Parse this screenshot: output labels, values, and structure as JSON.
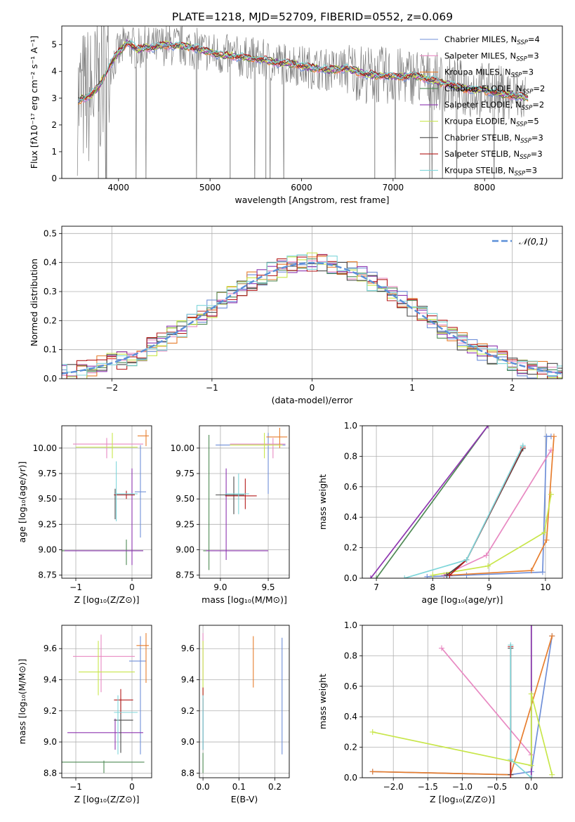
{
  "figure_title": "PLATE=1218, MJD=52709, FIBERID=0552, z=0.069",
  "colors": {
    "chabrier_miles": "#6f8fd8",
    "salpeter_miles": "#e889c2",
    "kroupa_miles": "#e77e2e",
    "chabrier_elodie": "#4f8a55",
    "salpeter_elodie": "#8e36b0",
    "kroupa_elodie": "#c8e64a",
    "chabrier_stelib": "#4a4a4a",
    "salpeter_stelib": "#b51b1b",
    "kroupa_stelib": "#7fd6da",
    "data": "#7f7f7f",
    "normal": "#5b8fd8"
  },
  "chart_data": [
    {
      "id": "spectrum",
      "type": "line",
      "xlabel": "wavelength [Angstrom, rest frame]",
      "ylabel": "Flux [fλ10⁻¹⁷ erg cm⁻² s⁻¹ A⁻¹]",
      "xlim": [
        3380,
        8850
      ],
      "ylim": [
        0,
        5.7
      ],
      "xticks": [
        4000,
        5000,
        6000,
        7000,
        8000
      ],
      "yticks": [
        0,
        1,
        2,
        3,
        4,
        5
      ],
      "grid": false,
      "legend": "top-right",
      "legend_entries": [
        {
          "key": "chabrier_miles",
          "base": "Chabrier MILES, N",
          "sub": "SSP",
          "suffix": "=4"
        },
        {
          "key": "salpeter_miles",
          "base": "Salpeter MILES, N",
          "sub": "SSP",
          "suffix": "=3"
        },
        {
          "key": "kroupa_miles",
          "base": "Kroupa MILES, N",
          "sub": "SSP",
          "suffix": "=3"
        },
        {
          "key": "chabrier_elodie",
          "base": "Chabrier ELODIE, N",
          "sub": "SSP",
          "suffix": "=2"
        },
        {
          "key": "salpeter_elodie",
          "base": "Salpeter ELODIE, N",
          "sub": "SSP",
          "suffix": "=2"
        },
        {
          "key": "kroupa_elodie",
          "base": "Kroupa ELODIE, N",
          "sub": "SSP",
          "suffix": "=5"
        },
        {
          "key": "chabrier_stelib",
          "base": "Chabrier STELIB, N",
          "sub": "SSP",
          "suffix": "=3"
        },
        {
          "key": "salpeter_stelib",
          "base": "Salpeter STELIB, N",
          "sub": "SSP",
          "suffix": "=3"
        },
        {
          "key": "kroupa_stelib",
          "base": "Kroupa STELIB, N",
          "sub": "SSP",
          "suffix": "=3"
        }
      ],
      "model_x": [
        3500,
        3600,
        3700,
        3800,
        3900,
        4000,
        4100,
        4200,
        4300,
        4400,
        4500,
        4600,
        4700,
        4800,
        4900,
        5000,
        5100,
        5200,
        5300,
        5400,
        5500,
        5600,
        5700,
        5800,
        5900,
        6000,
        6100,
        6200,
        6300,
        6400,
        6500,
        6600,
        6700,
        6800,
        6900,
        7000,
        7100,
        7200,
        7300,
        7400,
        7500,
        7600,
        7700,
        7800,
        7900,
        8000,
        8100,
        8200,
        8300,
        8400,
        8500
      ],
      "model_y": [
        2.7,
        3.0,
        3.1,
        3.5,
        4.2,
        4.7,
        5.1,
        4.8,
        4.9,
        4.9,
        5.0,
        4.95,
        4.95,
        4.9,
        4.8,
        4.75,
        4.6,
        4.6,
        4.55,
        4.5,
        4.5,
        4.4,
        4.35,
        4.3,
        4.3,
        4.2,
        4.15,
        4.1,
        4.05,
        4.1,
        4.1,
        4.0,
        3.9,
        3.85,
        3.85,
        3.8,
        3.8,
        3.85,
        3.8,
        3.7,
        3.6,
        3.55,
        3.4,
        3.35,
        3.3,
        3.3,
        3.2,
        3.15,
        3.1,
        3.05,
        3.0
      ]
    },
    {
      "id": "residuals",
      "type": "bar",
      "xlabel": "(data-model)/error",
      "ylabel": "Normed distribution",
      "xlim": [
        -2.5,
        2.5
      ],
      "ylim": [
        0,
        0.525
      ],
      "xticks": [
        -2,
        -1,
        0,
        1,
        2
      ],
      "yticks": [
        0.0,
        0.1,
        0.2,
        0.3,
        0.4,
        0.5
      ],
      "grid": true,
      "legend": "top-right",
      "normal_label": "𝒩(0,1)",
      "bin_width": 0.1
    },
    {
      "id": "age_vs_Z",
      "type": "scatter",
      "xlabel": "Z [log₁₀(Z/Z⊙)]",
      "ylabel": "age  [log₁₀(age/yr)]",
      "xlim": [
        -1.25,
        0.35
      ],
      "ylim": [
        8.72,
        10.22
      ],
      "xticks": [
        -1,
        0
      ],
      "yticks": [
        8.75,
        9.0,
        9.25,
        9.5,
        9.75,
        10.0
      ],
      "grid": true,
      "points": [
        {
          "c": "chabrier_miles",
          "x": 0.15,
          "y": 9.57,
          "xe": [
            0.05,
            0.25
          ],
          "ye": [
            9.12,
            10.03
          ]
        },
        {
          "c": "salpeter_miles",
          "x": -0.45,
          "y": 10.04,
          "xe": [
            -1.05,
            0.2
          ],
          "ye": [
            9.9,
            10.1
          ]
        },
        {
          "c": "kroupa_miles",
          "x": 0.25,
          "y": 10.12,
          "xe": [
            0.1,
            0.3
          ],
          "ye": [
            10.02,
            10.18
          ]
        },
        {
          "c": "chabrier_elodie",
          "x": -0.1,
          "y": 8.99,
          "xe": [
            -1.25,
            0.2
          ],
          "ye": [
            8.85,
            9.1
          ]
        },
        {
          "c": "salpeter_elodie",
          "x": 0.0,
          "y": 8.99,
          "xe": [
            -1.2,
            0.2
          ],
          "ye": [
            8.85,
            9.8
          ]
        },
        {
          "c": "kroupa_elodie",
          "x": -0.35,
          "y": 10.01,
          "xe": [
            -1.0,
            0.1
          ],
          "ye": [
            9.9,
            10.15
          ]
        },
        {
          "c": "chabrier_stelib",
          "x": -0.3,
          "y": 9.54,
          "xe": [
            -0.32,
            0.05
          ],
          "ye": [
            9.3,
            9.6
          ]
        },
        {
          "c": "salpeter_stelib",
          "x": -0.1,
          "y": 9.54,
          "xe": [
            -0.32,
            0.05
          ],
          "ye": [
            9.5,
            9.58
          ]
        },
        {
          "c": "kroupa_stelib",
          "x": -0.28,
          "y": 9.55,
          "xe": [
            -0.3,
            0.1
          ],
          "ye": [
            9.28,
            9.87
          ]
        }
      ]
    },
    {
      "id": "age_vs_mass",
      "type": "scatter",
      "xlabel": "mass [log₁₀(M/M⊙)]",
      "ylabel": "",
      "xlim": [
        8.78,
        9.72
      ],
      "ylim": [
        8.72,
        10.22
      ],
      "xticks": [
        9.0,
        9.5
      ],
      "yticks": [
        8.75,
        9.0,
        9.25,
        9.5,
        9.75,
        10.0
      ],
      "grid": true,
      "points": [
        {
          "c": "chabrier_miles",
          "x": 9.5,
          "y": 10.03,
          "xe": [
            8.95,
            9.68
          ],
          "ye": [
            9.55,
            10.15
          ]
        },
        {
          "c": "salpeter_miles",
          "x": 9.55,
          "y": 10.04,
          "xe": [
            9.1,
            9.68
          ],
          "ye": [
            9.9,
            10.1
          ]
        },
        {
          "c": "kroupa_miles",
          "x": 9.62,
          "y": 10.11,
          "xe": [
            9.48,
            9.7
          ],
          "ye": [
            10.0,
            10.2
          ]
        },
        {
          "c": "chabrier_elodie",
          "x": 8.88,
          "y": 8.99,
          "xe": [
            8.82,
            8.88
          ],
          "ye": [
            8.8,
            10.13
          ]
        },
        {
          "c": "salpeter_elodie",
          "x": 9.06,
          "y": 8.99,
          "xe": [
            8.85,
            9.5
          ],
          "ye": [
            8.9,
            9.8
          ]
        },
        {
          "c": "kroupa_elodie",
          "x": 9.46,
          "y": 10.03,
          "xe": [
            9.1,
            9.65
          ],
          "ye": [
            9.9,
            10.15
          ]
        },
        {
          "c": "chabrier_stelib",
          "x": 9.14,
          "y": 9.54,
          "xe": [
            8.95,
            9.25
          ],
          "ye": [
            9.35,
            9.72
          ]
        },
        {
          "c": "salpeter_stelib",
          "x": 9.26,
          "y": 9.53,
          "xe": [
            9.05,
            9.38
          ],
          "ye": [
            9.4,
            9.7
          ]
        },
        {
          "c": "kroupa_stelib",
          "x": 9.19,
          "y": 9.55,
          "xe": [
            9.05,
            9.3
          ],
          "ye": [
            9.35,
            9.75
          ]
        }
      ]
    },
    {
      "id": "mass_weight_vs_age",
      "type": "line",
      "xlabel": "age  [log₁₀(age/yr)]",
      "ylabel": "mass weight",
      "xlim": [
        6.75,
        10.3
      ],
      "ylim": [
        0,
        1.0
      ],
      "xticks": [
        7,
        8,
        9,
        10
      ],
      "yticks": [
        0.0,
        0.2,
        0.4,
        0.6,
        0.8,
        1.0
      ],
      "grid": true,
      "series": [
        {
          "c": "chabrier_miles",
          "x": [
            7.9,
            8.6,
            9.95,
            10.02,
            10.1
          ],
          "y": [
            0.01,
            0.02,
            0.04,
            0.93,
            0.93
          ]
        },
        {
          "c": "salpeter_miles",
          "x": [
            8.2,
            8.95,
            10.1
          ],
          "y": [
            0.02,
            0.15,
            0.84
          ]
        },
        {
          "c": "kroupa_miles",
          "x": [
            8.3,
            9.75,
            10.02,
            10.15
          ],
          "y": [
            0.02,
            0.05,
            0.25,
            0.93
          ]
        },
        {
          "c": "chabrier_elodie",
          "x": [
            7.0,
            8.98
          ],
          "y": [
            0.0,
            1.0
          ]
        },
        {
          "c": "salpeter_elodie",
          "x": [
            6.9,
            8.98
          ],
          "y": [
            0.0,
            1.0
          ]
        },
        {
          "c": "kroupa_elodie",
          "x": [
            8.0,
            8.98,
            9.98,
            10.1
          ],
          "y": [
            0.02,
            0.08,
            0.3,
            0.55
          ]
        },
        {
          "c": "chabrier_stelib",
          "x": [
            8.25,
            8.6,
            9.6
          ],
          "y": [
            0.02,
            0.12,
            0.85
          ]
        },
        {
          "c": "salpeter_stelib",
          "x": [
            8.3,
            8.6,
            9.6
          ],
          "y": [
            0.02,
            0.12,
            0.86
          ]
        },
        {
          "c": "kroupa_stelib",
          "x": [
            7.5,
            8.6,
            9.6
          ],
          "y": [
            0.0,
            0.12,
            0.87
          ]
        }
      ]
    },
    {
      "id": "mass_vs_Z",
      "type": "scatter",
      "xlabel": "Z [log₁₀(Z/Z⊙)]",
      "ylabel": "mass [log₁₀(M/M⊙)]",
      "xlim": [
        -1.25,
        0.35
      ],
      "ylim": [
        8.77,
        9.75
      ],
      "xticks": [
        -1,
        0
      ],
      "yticks": [
        8.8,
        9.0,
        9.2,
        9.4,
        9.6
      ],
      "grid": true,
      "points": [
        {
          "c": "chabrier_miles",
          "x": 0.15,
          "y": 9.52,
          "xe": [
            -0.05,
            0.25
          ],
          "ye": [
            8.92,
            9.68
          ]
        },
        {
          "c": "salpeter_miles",
          "x": -0.55,
          "y": 9.55,
          "xe": [
            -1.05,
            0.05
          ],
          "ye": [
            9.32,
            9.69
          ]
        },
        {
          "c": "kroupa_miles",
          "x": 0.25,
          "y": 9.62,
          "xe": [
            0.08,
            0.3
          ],
          "ye": [
            9.38,
            9.7
          ]
        },
        {
          "c": "chabrier_elodie",
          "x": -0.5,
          "y": 8.87,
          "xe": [
            -1.25,
            0.22
          ],
          "ye": [
            8.8,
            8.88
          ]
        },
        {
          "c": "salpeter_elodie",
          "x": -0.3,
          "y": 9.06,
          "xe": [
            -1.15,
            0.2
          ],
          "ye": [
            8.95,
            9.15
          ]
        },
        {
          "c": "kroupa_elodie",
          "x": -0.6,
          "y": 9.45,
          "xe": [
            -0.95,
            0.05
          ],
          "ye": [
            9.3,
            9.65
          ]
        },
        {
          "c": "chabrier_stelib",
          "x": -0.2,
          "y": 9.14,
          "xe": [
            -0.32,
            0.02
          ],
          "ye": [
            8.93,
            9.28
          ]
        },
        {
          "c": "salpeter_stelib",
          "x": -0.2,
          "y": 9.27,
          "xe": [
            -0.32,
            0.02
          ],
          "ye": [
            9.18,
            9.34
          ]
        },
        {
          "c": "kroupa_stelib",
          "x": -0.25,
          "y": 9.19,
          "xe": [
            -0.32,
            0.1
          ],
          "ye": [
            8.92,
            9.3
          ]
        }
      ]
    },
    {
      "id": "mass_vs_EBV",
      "type": "scatter",
      "xlabel": "E(B-V)",
      "ylabel": "",
      "xlim": [
        -0.01,
        0.24
      ],
      "ylim": [
        8.77,
        9.75
      ],
      "xticks": [
        0.0,
        0.1,
        0.2
      ],
      "yticks": [
        8.8,
        9.0,
        9.2,
        9.4,
        9.6
      ],
      "grid": true,
      "points": [
        {
          "c": "chabrier_miles",
          "x": 0.22,
          "y": 9.25,
          "xe": [
            0.22,
            0.22
          ],
          "ye": [
            8.92,
            9.67
          ]
        },
        {
          "c": "salpeter_miles",
          "x": 0.0,
          "y": 9.55,
          "xe": [
            0.0,
            0.0
          ],
          "ye": [
            9.4,
            9.7
          ]
        },
        {
          "c": "kroupa_miles",
          "x": 0.14,
          "y": 9.5,
          "xe": [
            0.14,
            0.14
          ],
          "ye": [
            9.35,
            9.68
          ]
        },
        {
          "c": "chabrier_elodie",
          "x": 0.0,
          "y": 8.87,
          "xe": [
            0.0,
            0.0
          ],
          "ye": [
            8.8,
            8.93
          ]
        },
        {
          "c": "salpeter_elodie",
          "x": 0.0,
          "y": 9.06,
          "xe": [
            0.0,
            0.0
          ],
          "ye": [
            8.95,
            9.2
          ]
        },
        {
          "c": "kroupa_elodie",
          "x": 0.0,
          "y": 9.45,
          "xe": [
            0.0,
            0.0
          ],
          "ye": [
            9.3,
            9.65
          ]
        },
        {
          "c": "chabrier_stelib",
          "x": 0.0,
          "y": 9.14,
          "xe": [
            0.0,
            0.0
          ],
          "ye": [
            8.95,
            9.28
          ]
        },
        {
          "c": "salpeter_stelib",
          "x": 0.0,
          "y": 9.27,
          "xe": [
            0.0,
            0.0
          ],
          "ye": [
            9.2,
            9.35
          ]
        },
        {
          "c": "kroupa_stelib",
          "x": 0.0,
          "y": 9.19,
          "xe": [
            0.0,
            0.0
          ],
          "ye": [
            8.95,
            9.3
          ]
        }
      ]
    },
    {
      "id": "mass_weight_vs_Z",
      "type": "line",
      "xlabel": "Z [log₁₀(Z/Z⊙)]",
      "ylabel": "mass weight",
      "xlim": [
        -2.45,
        0.45
      ],
      "ylim": [
        0,
        1.0
      ],
      "xticks": [
        -2.0,
        -1.5,
        -1.0,
        -0.5,
        0.0
      ],
      "yticks": [
        0.0,
        0.2,
        0.4,
        0.6,
        0.8,
        1.0
      ],
      "grid": true,
      "series": [
        {
          "c": "chabrier_miles",
          "x": [
            -2.3,
            -0.3,
            0.0,
            0.3
          ],
          "y": [
            0.04,
            0.02,
            0.04,
            0.93
          ]
        },
        {
          "c": "salpeter_miles",
          "x": [
            -1.3,
            0.0
          ],
          "y": [
            0.85,
            0.15
          ]
        },
        {
          "c": "kroupa_miles",
          "x": [
            -2.3,
            -0.3,
            0.3
          ],
          "y": [
            0.04,
            0.02,
            0.93
          ]
        },
        {
          "c": "chabrier_elodie",
          "x": [
            0.0,
            0.0
          ],
          "y": [
            0.0,
            1.0
          ]
        },
        {
          "c": "salpeter_elodie",
          "x": [
            0.0,
            0.0
          ],
          "y": [
            0.0,
            1.0
          ]
        },
        {
          "c": "kroupa_elodie",
          "x": [
            -2.3,
            0.0,
            0.0,
            0.3
          ],
          "y": [
            0.3,
            0.08,
            0.55,
            0.02
          ]
        },
        {
          "c": "chabrier_stelib",
          "x": [
            -0.3,
            -0.3
          ],
          "y": [
            0.02,
            0.85
          ]
        },
        {
          "c": "salpeter_stelib",
          "x": [
            -0.3,
            -0.3
          ],
          "y": [
            0.0,
            0.86
          ]
        },
        {
          "c": "kroupa_stelib",
          "x": [
            -0.3,
            -0.3,
            0.0
          ],
          "y": [
            0.87,
            0.12,
            0.0
          ]
        }
      ]
    }
  ]
}
